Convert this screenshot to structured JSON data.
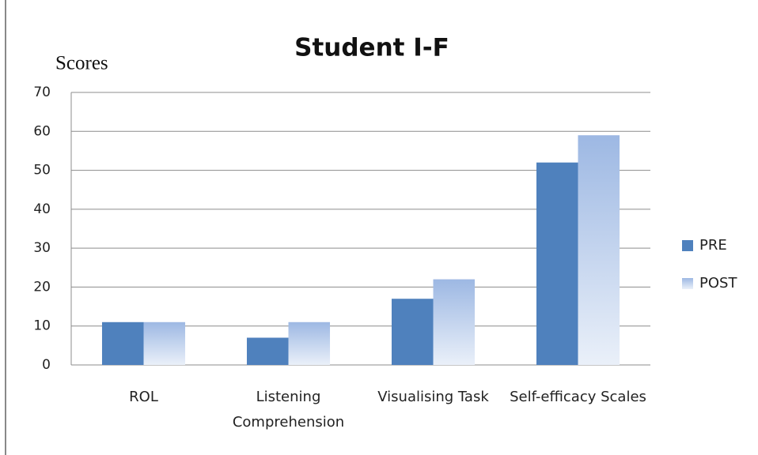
{
  "chart_data": {
    "type": "bar",
    "title": "Student I-F",
    "y_label": "Scores",
    "categories": [
      "ROL",
      "Listening Comprehension",
      "Visualising Task",
      "Self-efficacy Scales"
    ],
    "series": [
      {
        "name": "PRE",
        "color": "#4f81bd",
        "values": [
          11,
          7,
          17,
          52
        ]
      },
      {
        "name": "POST",
        "color": "#9db8e3",
        "values": [
          11,
          11,
          22,
          59
        ]
      }
    ],
    "ylim": [
      0,
      70
    ],
    "yticks": [
      0,
      10,
      20,
      30,
      40,
      50,
      60,
      70
    ],
    "grid": true,
    "legend": "right"
  }
}
